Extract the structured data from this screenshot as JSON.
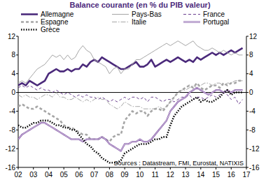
{
  "chart_data": {
    "type": "line",
    "title": "Balance courante (en % du PIB valeur)",
    "annotation": "Sources : Datastream, FMI, Eurostat, NATIXIS",
    "x": [
      2002,
      2002.25,
      2002.5,
      2002.75,
      2003,
      2003.25,
      2003.5,
      2003.75,
      2004,
      2004.25,
      2004.5,
      2004.75,
      2005,
      2005.25,
      2005.5,
      2005.75,
      2006,
      2006.25,
      2006.5,
      2006.75,
      2007,
      2007.25,
      2007.5,
      2007.75,
      2008,
      2008.25,
      2008.5,
      2008.75,
      2009,
      2009.25,
      2009.5,
      2009.75,
      2010,
      2010.25,
      2010.5,
      2010.75,
      2011,
      2011.25,
      2011.5,
      2011.75,
      2012,
      2012.25,
      2012.5,
      2012.75,
      2013,
      2013.25,
      2013.5,
      2013.75,
      2014,
      2014.25,
      2014.5,
      2014.75,
      2015,
      2015.25,
      2015.5,
      2015.75,
      2016,
      2016.25,
      2016.5,
      2016.75
    ],
    "xlim": [
      2002,
      2017
    ],
    "xticks": [
      {
        "value": 2002,
        "label": "02"
      },
      {
        "value": 2003,
        "label": "03"
      },
      {
        "value": 2004,
        "label": "04"
      },
      {
        "value": 2005,
        "label": "05"
      },
      {
        "value": 2006,
        "label": "06"
      },
      {
        "value": 2007,
        "label": "07"
      },
      {
        "value": 2008,
        "label": "08"
      },
      {
        "value": 2009,
        "label": "09"
      },
      {
        "value": 2010,
        "label": "10"
      },
      {
        "value": 2011,
        "label": "11"
      },
      {
        "value": 2012,
        "label": "12"
      },
      {
        "value": 2013,
        "label": "13"
      },
      {
        "value": 2014,
        "label": "14"
      },
      {
        "value": 2015,
        "label": "15"
      },
      {
        "value": 2016,
        "label": "16"
      },
      {
        "value": 2017,
        "label": "17"
      }
    ],
    "ylim": [
      -16,
      12
    ],
    "yticks": [
      -16,
      -12,
      -8,
      -4,
      0,
      4,
      8,
      12
    ],
    "grid": false,
    "legend": "top",
    "series": [
      {
        "name": "Allemagne",
        "color": "#4b2a7b",
        "line_style": "solid",
        "values": [
          1.5,
          2,
          1.5,
          2.5,
          2,
          1.5,
          2,
          2.5,
          4,
          4.5,
          5,
          4.5,
          4.5,
          5,
          4.5,
          5,
          5,
          6,
          5.5,
          6.5,
          7,
          6.5,
          7.5,
          7,
          6.5,
          6,
          5.5,
          5,
          5,
          5.5,
          6,
          6.5,
          5.5,
          5.5,
          6,
          7,
          5.5,
          6,
          6.5,
          7,
          6.5,
          7,
          7.5,
          7,
          6.5,
          7,
          6.5,
          7.5,
          7,
          7.5,
          8,
          8.5,
          8,
          8.5,
          8,
          8.5,
          9,
          8.5,
          9,
          9.5
        ]
      },
      {
        "name": "Pays-Bas",
        "color": "#a6a6a6",
        "line_style": "solid",
        "values": [
          2,
          2.5,
          2,
          3,
          4,
          5,
          5.5,
          6,
          7,
          8,
          7.5,
          8,
          7,
          8,
          7,
          7.5,
          9,
          10,
          9,
          8.5,
          7,
          6.5,
          6,
          5.5,
          4,
          5,
          5.5,
          4,
          5,
          5,
          6,
          7,
          7,
          7.5,
          8,
          8.5,
          9,
          9.5,
          10,
          10.5,
          10,
          10.5,
          11,
          10.5,
          10,
          10.5,
          11,
          10,
          9.5,
          9,
          9,
          9.5,
          9,
          8.5,
          9,
          8.5,
          8,
          8.5,
          8,
          8
        ]
      },
      {
        "name": "France",
        "color": "#6b3f8f",
        "line_style": "dashed",
        "values": [
          1,
          1.5,
          1,
          1.5,
          1,
          0.5,
          1,
          0.5,
          0.5,
          0,
          0.5,
          0,
          -0.5,
          0,
          -0.5,
          -1,
          -0.5,
          -1,
          -0.5,
          -1,
          -1,
          -1.5,
          -1,
          -1.5,
          -2,
          -1.5,
          -2,
          -1.5,
          -1,
          -1.5,
          -1,
          -1,
          -1.5,
          -1,
          -2,
          -1,
          -1,
          -1.5,
          -2,
          -1.5,
          -1.5,
          -2,
          -1.5,
          -1,
          -1,
          -0.5,
          -1.5,
          -1,
          -1,
          -1.5,
          -1,
          -0.5,
          -1,
          -0.5,
          0,
          -0.5,
          -1.5,
          -1,
          -2.5,
          -1.5
        ]
      },
      {
        "name": "Espagne",
        "color": "#a6a6a6",
        "line_style": "dashed",
        "values": [
          -3,
          -2.5,
          -3,
          -3.5,
          -3.5,
          -3,
          -3.5,
          -4,
          -4.5,
          -5,
          -5.5,
          -6,
          -7,
          -7.5,
          -7.5,
          -8,
          -8.5,
          -9,
          -9,
          -10,
          -10,
          -10,
          -9.5,
          -10,
          -10.5,
          -9.5,
          -9,
          -9,
          -6,
          -5,
          -4,
          -4.5,
          -4,
          -4,
          -5,
          -4,
          -3.5,
          -3.5,
          -4,
          -3,
          -2,
          -1,
          0,
          0.5,
          1,
          1.5,
          1,
          2,
          1,
          0.5,
          1,
          1.5,
          1.5,
          1,
          2,
          1.5,
          2,
          2,
          2.5,
          2.5
        ]
      },
      {
        "name": "Italie",
        "color": "#a6a6a6",
        "line_style": "dashdot",
        "values": [
          -0.5,
          -1,
          -0.5,
          -1,
          -1,
          -1.5,
          -1,
          -0.5,
          -0.5,
          -1,
          0,
          -1,
          -1,
          -1.5,
          -1.5,
          -1,
          -1.5,
          -2,
          -1.5,
          -2,
          -1.5,
          -1,
          -1.5,
          -1.5,
          -2.5,
          -3,
          -3.5,
          -3,
          -2,
          -2.5,
          -3,
          -3,
          -3,
          -3.5,
          -3.5,
          -3.5,
          -3.5,
          -3,
          -3.5,
          -3,
          -2,
          -1,
          0,
          0.5,
          0.5,
          1,
          1.5,
          1,
          1.5,
          2,
          2,
          1.5,
          2,
          2,
          1.5,
          2,
          2,
          2.5,
          2.5,
          2.5
        ]
      },
      {
        "name": "Portugal",
        "color": "#7a4aa0",
        "line_style": "double",
        "values": [
          -10,
          -9,
          -8.5,
          -8,
          -7.5,
          -7,
          -6.5,
          -6.5,
          -7,
          -7.5,
          -8,
          -8.5,
          -9,
          -9.5,
          -10,
          -10,
          -10,
          -10.5,
          -10,
          -10,
          -10,
          -10,
          -9.5,
          -10,
          -11,
          -11.5,
          -12,
          -12.5,
          -11,
          -11,
          -10.5,
          -10.5,
          -10,
          -10.5,
          -10.5,
          -10,
          -9,
          -8,
          -7,
          -6,
          -4,
          -3,
          -2,
          -1.5,
          -1,
          0,
          0.5,
          1,
          0.5,
          0,
          -0.5,
          0,
          0.5,
          0.5,
          0,
          0.5,
          0,
          0.5,
          0.5,
          0.5
        ]
      },
      {
        "name": "Grèce",
        "color": "#000000",
        "line_style": "dotted",
        "values": [
          -7,
          -7.5,
          -7.5,
          -7,
          -6.5,
          -6.5,
          -6,
          -6,
          -6,
          -6.5,
          -7,
          -7,
          -7.5,
          -7.5,
          -8,
          -8,
          -9,
          -10,
          -11,
          -11.5,
          -12.5,
          -13,
          -14,
          -14.5,
          -15,
          -15,
          -15,
          -14.5,
          -13,
          -12.5,
          -12,
          -11.5,
          -11,
          -11,
          -11,
          -10.5,
          -10,
          -10,
          -9.5,
          -9.5,
          -7,
          -5,
          -4,
          -3,
          -2.5,
          -2,
          -1.5,
          -1,
          -2,
          -1.5,
          -2,
          -2,
          -1.5,
          -1,
          0,
          0.5,
          -0.5,
          0,
          0,
          0
        ]
      }
    ]
  }
}
